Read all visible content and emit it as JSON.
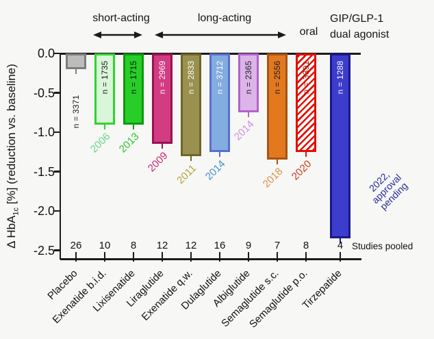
{
  "header": {
    "short_acting_label": "short-acting",
    "long_acting_label": "long-acting",
    "oral_label": "oral",
    "dual_agonist_line1": "GIP/GLP-1",
    "dual_agonist_line2": "dual agonist"
  },
  "y_axis": {
    "label_prefix": "Δ HbA",
    "label_subscript": "1c",
    "label_suffix": " [%] (reduction vs. baseline)"
  },
  "x_axis": {
    "studies_pooled_label": "Studies pooled"
  },
  "chart_data": {
    "type": "bar",
    "title": "",
    "ylabel": "Δ HbA1c [%] (reduction vs. baseline)",
    "ylim": [
      -2.5,
      0.0
    ],
    "grid": false,
    "legend": "none",
    "ytick_values": [
      0,
      -0.5,
      -1.0,
      -1.5,
      -2.0,
      -2.5
    ],
    "ytick_labels": [
      "0.0",
      "-0.5",
      "-1.0",
      "-1.5",
      "-2.0",
      "-2.5"
    ],
    "group_annotations": [
      {
        "label": "short-acting",
        "bars": [
          "Exenatide b.i.d.",
          "Lixisenatide"
        ]
      },
      {
        "label": "long-acting",
        "bars": [
          "Liraglutide",
          "Exenatide q.w.",
          "Dulaglutide",
          "Albiglutide",
          "Semaglutide s.c."
        ]
      },
      {
        "label": "oral",
        "bars": [
          "Semaglutide p.o."
        ]
      },
      {
        "label": "GIP/GLP-1 dual agonist",
        "bars": [
          "Tirzepatide"
        ]
      }
    ],
    "bars": [
      {
        "category": "Placebo",
        "value": -0.2,
        "n_label": "n = 3371",
        "year": [],
        "year_color": "",
        "studies_pooled": 26,
        "fill": "#bcbcbc",
        "border": "#7d7d7d",
        "n_color": "#1a1a1a",
        "n_inside": false,
        "hatch": false
      },
      {
        "category": "Exenatide b.i.d.",
        "value": -0.9,
        "n_label": "n = 1735",
        "year": [
          "2006"
        ],
        "year_color": "#63d882",
        "studies_pooled": 10,
        "fill": "#d9f6d9",
        "border": "#2dd42d",
        "n_color": "#1a1a1a",
        "n_inside": true,
        "hatch": false
      },
      {
        "category": "Lixisenatide",
        "value": -0.9,
        "n_label": "n = 1715",
        "year": [
          "2013"
        ],
        "year_color": "#2bc52b",
        "studies_pooled": 8,
        "fill": "#27ce27",
        "border": "#0c9a0c",
        "n_color": "#111111",
        "n_inside": true,
        "hatch": false
      },
      {
        "category": "Liraglutide",
        "value": -1.15,
        "n_label": "n = 2969",
        "year": [
          "2009"
        ],
        "year_color": "#c92579",
        "studies_pooled": 12,
        "fill": "#d23c82",
        "border": "#97134f",
        "n_color": "#ffffff",
        "n_inside": true,
        "hatch": false
      },
      {
        "category": "Exenatide q.w.",
        "value": -1.3,
        "n_label": "n = 2833",
        "year": [
          "2011"
        ],
        "year_color": "#b3a23b",
        "studies_pooled": 12,
        "fill": "#9a9150",
        "border": "#6e6527",
        "n_color": "#ffffff",
        "n_inside": true,
        "hatch": false
      },
      {
        "category": "Dulaglutide",
        "value": -1.25,
        "n_label": "n = 3712",
        "year": [
          "2014"
        ],
        "year_color": "#3f92d2",
        "studies_pooled": 16,
        "fill": "#83ace1",
        "border": "#5a6ecd",
        "n_color": "#ffffff",
        "n_inside": true,
        "hatch": false
      },
      {
        "category": "Albiglutide",
        "value": -0.75,
        "n_label": "n = 2365",
        "year": [
          "2014"
        ],
        "year_color": "#cf8fe2",
        "studies_pooled": 9,
        "fill": "#dcb4e8",
        "border": "#b261cd",
        "n_color": "#1a1a1a",
        "n_inside": true,
        "hatch": false
      },
      {
        "category": "Semaglutide s.c.",
        "value": -1.35,
        "n_label": "n = 2556",
        "year": [
          "2018"
        ],
        "year_color": "#dd8e45",
        "studies_pooled": 7,
        "fill": "#e2791f",
        "border": "#a95410",
        "n_color": "#1a1a1a",
        "n_inside": true,
        "hatch": false
      },
      {
        "category": "Semaglutide p.o.",
        "value": -1.25,
        "n_label": "n = 3391",
        "year": [
          "2020"
        ],
        "year_color": "#cc3a14",
        "studies_pooled": 8,
        "fill": "#ffffff",
        "border": "#e11000",
        "n_color": "#8e1606",
        "n_inside": true,
        "hatch": true
      },
      {
        "category": "Tirzepatide",
        "value": -2.35,
        "n_label": "n = 1288",
        "year": [
          "2022,",
          "approval",
          "pending"
        ],
        "year_color": "#28289e",
        "studies_pooled": 4,
        "fill": "#3c3ccd",
        "border": "#191989",
        "n_color": "#ffffff",
        "n_inside": true,
        "hatch": false
      }
    ]
  }
}
